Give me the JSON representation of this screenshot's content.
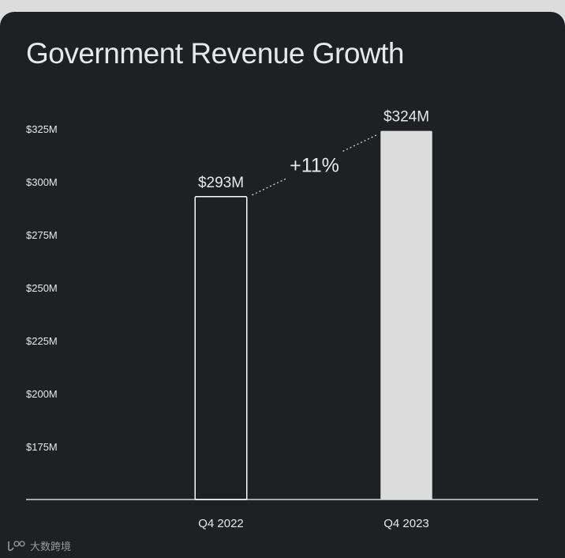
{
  "chart_data": {
    "type": "bar",
    "title": "Government Revenue Growth",
    "categories": [
      "Q4 2022",
      "Q4 2023"
    ],
    "values": [
      293,
      324
    ],
    "data_labels": [
      "$293M",
      "$324M"
    ],
    "y_ticks": [
      325,
      300,
      275,
      250,
      225,
      200,
      175
    ],
    "y_tick_labels": [
      "$325M",
      "$300M",
      "$275M",
      "$250M",
      "$225M",
      "$200M",
      "$175M"
    ],
    "ylim": [
      150,
      335
    ],
    "xlabel": "",
    "ylabel": "",
    "grid": false,
    "annotation": {
      "text": "+11%",
      "from": "Q4 2022",
      "to": "Q4 2023"
    },
    "bar_styles": [
      "outline",
      "filled"
    ]
  },
  "colors": {
    "background": "#1e2023",
    "bar_outline": "#ffffff",
    "bar_fill": "#dcdcdc",
    "text": "#e8e8e8",
    "axis": "#d0d0d0"
  },
  "watermark": {
    "icon": "logo-icon",
    "text": "大数跨境"
  }
}
